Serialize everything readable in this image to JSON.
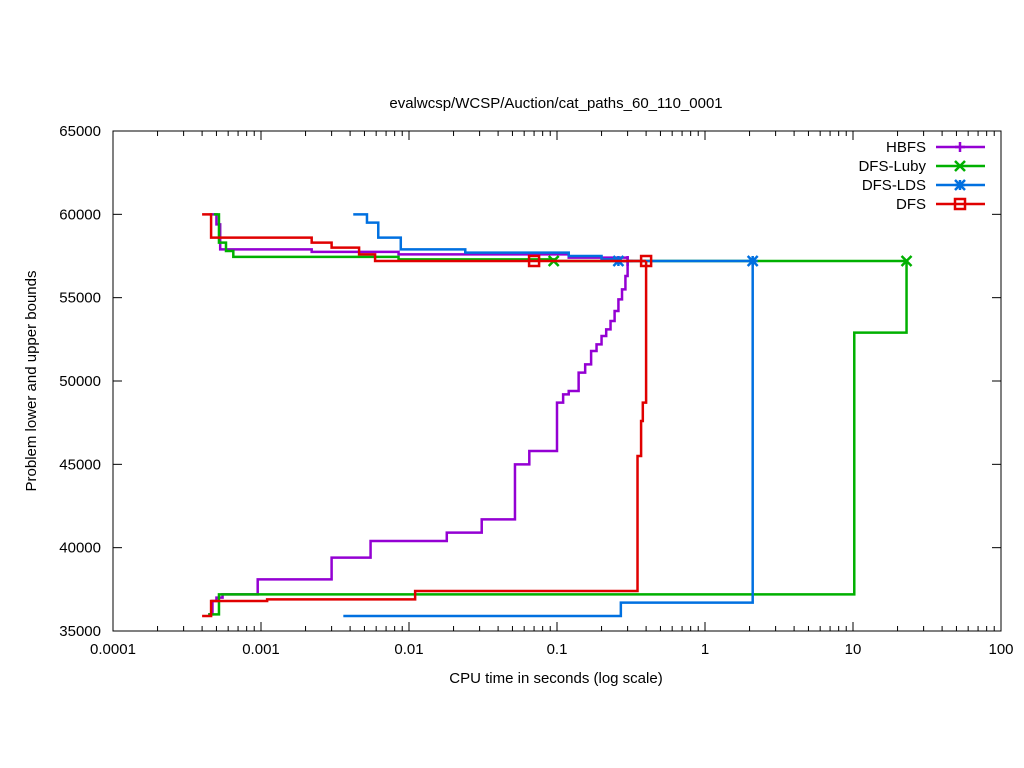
{
  "chart_data": {
    "type": "line",
    "title": "evalwcsp/WCSP/Auction/cat_paths_60_110_0001",
    "xlabel": "CPU time in seconds (log scale)",
    "ylabel": "Problem lower and upper bounds",
    "xscale": "log",
    "xlim": [
      0.0001,
      100
    ],
    "ylim": [
      35000,
      65000
    ],
    "xticks": [
      {
        "v": 0.0001,
        "label": "0.0001"
      },
      {
        "v": 0.001,
        "label": "0.001"
      },
      {
        "v": 0.01,
        "label": "0.01"
      },
      {
        "v": 0.1,
        "label": "0.1"
      },
      {
        "v": 1,
        "label": "1"
      },
      {
        "v": 10,
        "label": "10"
      },
      {
        "v": 100,
        "label": "100"
      }
    ],
    "yticks": [
      {
        "v": 35000,
        "label": "35000"
      },
      {
        "v": 40000,
        "label": "40000"
      },
      {
        "v": 45000,
        "label": "45000"
      },
      {
        "v": 50000,
        "label": "50000"
      },
      {
        "v": 55000,
        "label": "55000"
      },
      {
        "v": 60000,
        "label": "60000"
      },
      {
        "v": 65000,
        "label": "65000"
      }
    ],
    "grid": false,
    "legend_position": "top-right",
    "series": [
      {
        "name": "HBFS",
        "color": "#9400d3",
        "marker": "plus",
        "upper": [
          [
            0.00045,
            60000
          ],
          [
            0.0005,
            60000
          ],
          [
            0.0005,
            59400
          ],
          [
            0.00053,
            59400
          ],
          [
            0.00053,
            57900
          ],
          [
            0.0022,
            57900
          ],
          [
            0.0022,
            57750
          ],
          [
            0.0085,
            57750
          ],
          [
            0.0085,
            57600
          ],
          [
            0.12,
            57600
          ],
          [
            0.12,
            57400
          ],
          [
            0.3,
            57400
          ],
          [
            0.3,
            57200
          ]
        ],
        "lower": [
          [
            0.00044,
            36000
          ],
          [
            0.00047,
            36000
          ],
          [
            0.00047,
            36800
          ],
          [
            0.0005,
            36800
          ],
          [
            0.0005,
            37000
          ],
          [
            0.00055,
            37000
          ],
          [
            0.00055,
            37200
          ],
          [
            0.00095,
            37200
          ],
          [
            0.00095,
            38100
          ],
          [
            0.003,
            38100
          ],
          [
            0.003,
            39400
          ],
          [
            0.0055,
            39400
          ],
          [
            0.0055,
            40400
          ],
          [
            0.018,
            40400
          ],
          [
            0.018,
            40900
          ],
          [
            0.031,
            40900
          ],
          [
            0.031,
            41700
          ],
          [
            0.052,
            41700
          ],
          [
            0.052,
            45000
          ],
          [
            0.065,
            45000
          ],
          [
            0.065,
            45800
          ],
          [
            0.1,
            45800
          ],
          [
            0.1,
            48700
          ],
          [
            0.11,
            48700
          ],
          [
            0.11,
            49200
          ],
          [
            0.12,
            49200
          ],
          [
            0.12,
            49400
          ],
          [
            0.14,
            49400
          ],
          [
            0.14,
            50500
          ],
          [
            0.155,
            50500
          ],
          [
            0.155,
            51000
          ],
          [
            0.17,
            51000
          ],
          [
            0.17,
            51800
          ],
          [
            0.185,
            51800
          ],
          [
            0.185,
            52200
          ],
          [
            0.2,
            52200
          ],
          [
            0.2,
            52700
          ],
          [
            0.215,
            52700
          ],
          [
            0.215,
            53100
          ],
          [
            0.23,
            53100
          ],
          [
            0.23,
            53600
          ],
          [
            0.245,
            53600
          ],
          [
            0.245,
            54200
          ],
          [
            0.26,
            54200
          ],
          [
            0.26,
            54900
          ],
          [
            0.275,
            54900
          ],
          [
            0.275,
            55500
          ],
          [
            0.29,
            55500
          ],
          [
            0.29,
            56300
          ],
          [
            0.3,
            56300
          ],
          [
            0.3,
            57200
          ]
        ],
        "markers": [
          [
            0.3,
            57200
          ]
        ]
      },
      {
        "name": "DFS-Luby",
        "color": "#00b000",
        "marker": "x",
        "upper": [
          [
            0.00048,
            60000
          ],
          [
            0.00052,
            60000
          ],
          [
            0.00052,
            58300
          ],
          [
            0.00058,
            58300
          ],
          [
            0.00058,
            57800
          ],
          [
            0.00065,
            57800
          ],
          [
            0.00065,
            57450
          ],
          [
            0.0085,
            57450
          ],
          [
            0.0085,
            57300
          ],
          [
            0.095,
            57300
          ],
          [
            0.095,
            57200
          ],
          [
            23,
            57200
          ]
        ],
        "lower": [
          [
            0.00044,
            36000
          ],
          [
            0.00052,
            36000
          ],
          [
            0.00052,
            37200
          ],
          [
            10.2,
            37200
          ],
          [
            10.2,
            52900
          ],
          [
            23,
            52900
          ],
          [
            23,
            57200
          ]
        ],
        "markers": [
          [
            0.095,
            57200
          ],
          [
            23,
            57200
          ]
        ]
      },
      {
        "name": "DFS-LDS",
        "color": "#0070e0",
        "marker": "star",
        "upper": [
          [
            0.0042,
            60000
          ],
          [
            0.0052,
            60000
          ],
          [
            0.0052,
            59500
          ],
          [
            0.0062,
            59500
          ],
          [
            0.0062,
            58600
          ],
          [
            0.0088,
            58600
          ],
          [
            0.0088,
            57900
          ],
          [
            0.024,
            57900
          ],
          [
            0.024,
            57700
          ],
          [
            0.12,
            57700
          ],
          [
            0.12,
            57500
          ],
          [
            0.2,
            57500
          ],
          [
            0.2,
            57300
          ],
          [
            0.26,
            57300
          ],
          [
            0.26,
            57200
          ],
          [
            2.1,
            57200
          ]
        ],
        "lower": [
          [
            0.0036,
            35900
          ],
          [
            0.27,
            35900
          ],
          [
            0.27,
            36700
          ],
          [
            2.1,
            36700
          ],
          [
            2.1,
            57200
          ]
        ],
        "markers": [
          [
            0.26,
            57200
          ],
          [
            2.1,
            57200
          ]
        ]
      },
      {
        "name": "DFS",
        "color": "#e00000",
        "marker": "square",
        "upper": [
          [
            0.0004,
            60000
          ],
          [
            0.00046,
            60000
          ],
          [
            0.00046,
            58600
          ],
          [
            0.0022,
            58600
          ],
          [
            0.0022,
            58300
          ],
          [
            0.003,
            58300
          ],
          [
            0.003,
            58000
          ],
          [
            0.0046,
            58000
          ],
          [
            0.0046,
            57600
          ],
          [
            0.0059,
            57600
          ],
          [
            0.0059,
            57200
          ],
          [
            0.4,
            57200
          ]
        ],
        "lower": [
          [
            0.0004,
            35900
          ],
          [
            0.00046,
            35900
          ],
          [
            0.00046,
            36800
          ],
          [
            0.0011,
            36800
          ],
          [
            0.0011,
            36900
          ],
          [
            0.011,
            36900
          ],
          [
            0.011,
            37400
          ],
          [
            0.35,
            37400
          ],
          [
            0.35,
            45500
          ],
          [
            0.37,
            45500
          ],
          [
            0.37,
            47600
          ],
          [
            0.38,
            47600
          ],
          [
            0.38,
            48700
          ],
          [
            0.4,
            48700
          ],
          [
            0.4,
            57200
          ]
        ],
        "markers": [
          [
            0.07,
            57200
          ],
          [
            0.4,
            57200
          ]
        ]
      }
    ]
  }
}
